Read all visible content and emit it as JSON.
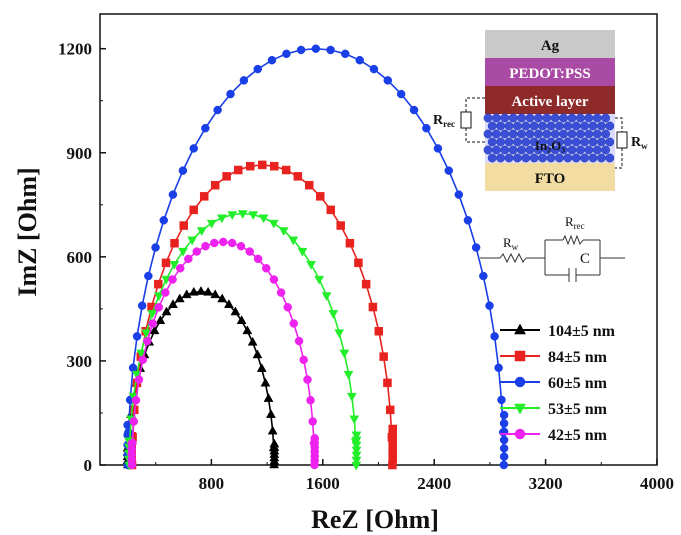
{
  "chart_data": {
    "type": "scatter",
    "xlabel": "ReZ [Ohm]",
    "ylabel": "ImZ [Ohm]",
    "xlim": [
      0,
      4000
    ],
    "ylim": [
      0,
      1300
    ],
    "xticks": [
      800,
      1600,
      2400,
      3200,
      4000
    ],
    "yticks": [
      0,
      300,
      600,
      900,
      1200
    ],
    "legend_position": "bottom-right",
    "grid": false,
    "series": [
      {
        "name": "104±5 nm",
        "color": "#000000",
        "marker": "triangle-up",
        "rs": 200,
        "rct": 1050,
        "peak": 500,
        "n": 32
      },
      {
        "name": "84±5 nm",
        "color": "#e8231f",
        "marker": "square",
        "rs": 230,
        "rct": 1870,
        "peak": 865,
        "n": 34
      },
      {
        "name": "60±5 nm",
        "color": "#1a3fe6",
        "marker": "circle",
        "rs": 200,
        "rct": 2700,
        "peak": 1200,
        "n": 40
      },
      {
        "name": "53±5 nm",
        "color": "#22ee2a",
        "marker": "triangle-down",
        "rs": 210,
        "rct": 1630,
        "peak": 725,
        "n": 34
      },
      {
        "name": "42±5 nm",
        "color": "#ee22ee",
        "marker": "circle",
        "rs": 230,
        "rct": 1310,
        "peak": 643,
        "n": 32
      }
    ]
  },
  "inset": {
    "layers": [
      {
        "label": "Ag",
        "color": "#c9c9c9",
        "text_color": "#111111"
      },
      {
        "label": "PEDOT:PSS",
        "color": "#a94aa4",
        "text_color": "#ffffff"
      },
      {
        "label": "Active layer",
        "color": "#8e2a2a",
        "text_color": "#ffffff"
      },
      {
        "label": "In₂O₃",
        "color": "#3b4fd6",
        "text_color": "#111111"
      },
      {
        "label": "FTO",
        "color": "#f2dca1",
        "text_color": "#111111"
      }
    ],
    "rrec_main": "R",
    "rrec_sub": "rec",
    "rw_main": "R",
    "rw_sub": "w",
    "c_label": "C"
  }
}
